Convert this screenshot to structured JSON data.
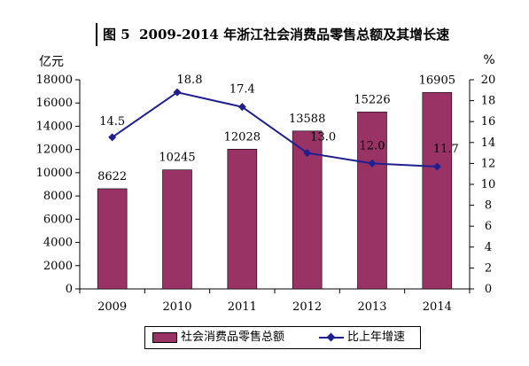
{
  "title": {
    "figure_no": "图 5",
    "text": "2009-2014 年浙江社会消费品零售总额及其增长速"
  },
  "chart_data": {
    "type": "bar",
    "categories": [
      "2009",
      "2010",
      "2011",
      "2012",
      "2013",
      "2014"
    ],
    "series": [
      {
        "name": "社会消费品零售总额",
        "type": "bar",
        "axis": "left",
        "values": [
          8622,
          10245,
          12028,
          13588,
          15226,
          16905
        ],
        "labels": [
          "8622",
          "10245",
          "12028",
          "13588",
          "15226",
          "16905"
        ]
      },
      {
        "name": "比上年增速",
        "type": "line",
        "axis": "right",
        "values": [
          14.5,
          18.8,
          17.4,
          13.0,
          12.0,
          11.7
        ],
        "labels": [
          "14.5",
          "18.8",
          "17.4",
          "13.0",
          "12.0",
          "11.7"
        ]
      }
    ],
    "y_left": {
      "unit": "亿元",
      "ylim": [
        0,
        18000
      ],
      "ticks": [
        "0",
        "2000",
        "4000",
        "6000",
        "8000",
        "10000",
        "12000",
        "14000",
        "16000",
        "18000"
      ]
    },
    "y_right": {
      "unit": "%",
      "ylim": [
        0,
        20
      ],
      "ticks": [
        "0",
        "2",
        "4",
        "6",
        "8",
        "10",
        "12",
        "14",
        "16",
        "18",
        "20"
      ]
    },
    "grid": false,
    "legend_position": "bottom",
    "colors": {
      "bar": "#993366",
      "line": "#1f1f8f"
    }
  }
}
